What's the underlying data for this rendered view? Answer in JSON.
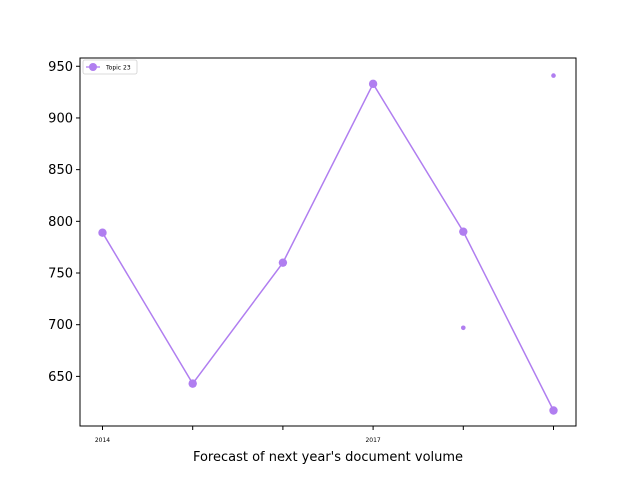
{
  "chart_data": {
    "type": "line",
    "xlabel": "Forecast of next year's document volume",
    "ylabel": "",
    "x": [
      2014,
      2015,
      2016,
      2017,
      2018,
      2019
    ],
    "x_tick_labels": [
      "2014",
      "",
      "",
      "2017",
      "",
      ""
    ],
    "ylim": [
      602,
      958
    ],
    "y_ticks": [
      650,
      700,
      750,
      800,
      850,
      900,
      950
    ],
    "grid": false,
    "legend": "top-left",
    "series": [
      {
        "name": "Topic 23",
        "color": "#b07ef0",
        "values": [
          789,
          643,
          760,
          933,
          790,
          617
        ]
      }
    ],
    "extra_points": [
      {
        "x": 2018,
        "y": 697,
        "color": "#b07ef0"
      },
      {
        "x": 2019,
        "y": 941,
        "color": "#b07ef0"
      }
    ]
  }
}
